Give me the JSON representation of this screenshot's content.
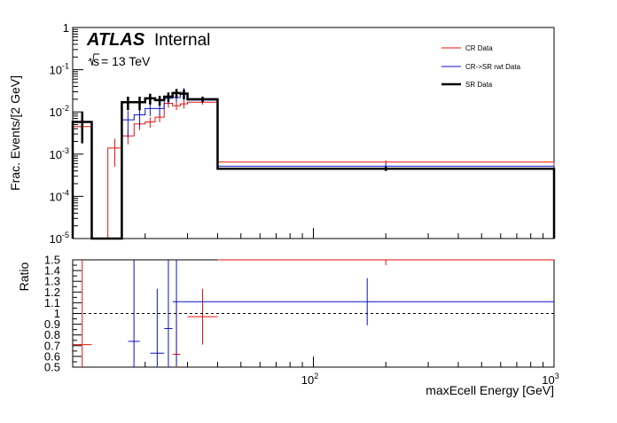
{
  "header": {
    "experiment": "ATLAS",
    "status": "Internal",
    "energy_prefix": "s",
    "energy_suffix": " = 13 TeV"
  },
  "chart_data": [
    {
      "type": "line",
      "panel": "main",
      "ylabel": "Frac. Events/[2 GeV]",
      "xlabel": "",
      "xscale": "log",
      "yscale": "log",
      "xlim": [
        10,
        1000
      ],
      "ylim": [
        1e-05,
        1
      ],
      "legend_position": "top-right",
      "y_ticks": [
        {
          "value": 1e-05,
          "base": "10",
          "exp": "-5"
        },
        {
          "value": 0.0001,
          "base": "10",
          "exp": "-4"
        },
        {
          "value": 0.001,
          "base": "10",
          "exp": "-3"
        },
        {
          "value": 0.01,
          "base": "10",
          "exp": "-2"
        },
        {
          "value": 0.1,
          "base": "10",
          "exp": "-1"
        },
        {
          "value": 1,
          "base": "1",
          "exp": ""
        }
      ],
      "series": [
        {
          "name": "CR Data",
          "color": "#e8120c",
          "bins": [
            {
              "x0": 10,
              "x1": 12,
              "y": 0.0045,
              "err": 0.0018
            },
            {
              "x0": 12,
              "x1": 14,
              "y": 1e-05,
              "err": 0
            },
            {
              "x0": 14,
              "x1": 16,
              "y": 0.0014,
              "err": 0.0009
            },
            {
              "x0": 16,
              "x1": 18,
              "y": 0.0027,
              "err": 0.001
            },
            {
              "x0": 18,
              "x1": 20,
              "y": 0.0052,
              "err": 0.0015
            },
            {
              "x0": 20,
              "x1": 22,
              "y": 0.0058,
              "err": 0.0016
            },
            {
              "x0": 22,
              "x1": 24,
              "y": 0.0075,
              "err": 0.0018
            },
            {
              "x0": 24,
              "x1": 26,
              "y": 0.016,
              "err": 0.0035
            },
            {
              "x0": 26,
              "x1": 28,
              "y": 0.014,
              "err": 0.003
            },
            {
              "x0": 28,
              "x1": 30,
              "y": 0.0155,
              "err": 0.0035
            },
            {
              "x0": 30,
              "x1": 40,
              "y": 0.017,
              "err": 0.0022
            },
            {
              "x0": 40,
              "x1": 1000,
              "y": 0.00065,
              "err": 6e-05
            }
          ]
        },
        {
          "name": "CR->SR rwt Data",
          "color": "#0c12c8",
          "bins": [
            {
              "x0": 10,
              "x1": 12,
              "y": 0.0058,
              "err": 0.002
            },
            {
              "x0": 12,
              "x1": 14,
              "y": 1e-05,
              "err": 0
            },
            {
              "x0": 14,
              "x1": 16,
              "y": 1e-05,
              "err": 0
            },
            {
              "x0": 16,
              "x1": 18,
              "y": 0.0065,
              "err": 0.004
            },
            {
              "x0": 18,
              "x1": 20,
              "y": 0.0085,
              "err": 0.004
            },
            {
              "x0": 20,
              "x1": 22,
              "y": 0.012,
              "err": 0.004
            },
            {
              "x0": 22,
              "x1": 24,
              "y": 0.012,
              "err": 0.004
            },
            {
              "x0": 24,
              "x1": 26,
              "y": 0.021,
              "err": 0.006
            },
            {
              "x0": 26,
              "x1": 28,
              "y": 0.022,
              "err": 0.005
            },
            {
              "x0": 28,
              "x1": 30,
              "y": 0.028,
              "err": 0.009
            },
            {
              "x0": 30,
              "x1": 40,
              "y": 0.019,
              "err": 0.003
            },
            {
              "x0": 40,
              "x1": 1000,
              "y": 0.00052,
              "err": 8e-05
            }
          ]
        },
        {
          "name": "SR Data",
          "color": "#000000",
          "bins": [
            {
              "x0": 10,
              "x1": 12,
              "y": 0.0058,
              "err": 0.004
            },
            {
              "x0": 12,
              "x1": 14,
              "y": 1e-05,
              "err": 0
            },
            {
              "x0": 14,
              "x1": 16,
              "y": 1e-05,
              "err": 0
            },
            {
              "x0": 16,
              "x1": 18,
              "y": 0.017,
              "err": 0.006
            },
            {
              "x0": 18,
              "x1": 20,
              "y": 0.017,
              "err": 0.006
            },
            {
              "x0": 20,
              "x1": 22,
              "y": 0.021,
              "err": 0.006
            },
            {
              "x0": 22,
              "x1": 24,
              "y": 0.019,
              "err": 0.005
            },
            {
              "x0": 24,
              "x1": 26,
              "y": 0.023,
              "err": 0.006
            },
            {
              "x0": 26,
              "x1": 28,
              "y": 0.028,
              "err": 0.007
            },
            {
              "x0": 28,
              "x1": 30,
              "y": 0.027,
              "err": 0.007
            },
            {
              "x0": 30,
              "x1": 40,
              "y": 0.02,
              "err": 0.003
            },
            {
              "x0": 40,
              "x1": 1000,
              "y": 0.00045,
              "err": 5e-05
            }
          ]
        }
      ]
    },
    {
      "type": "scatter",
      "panel": "ratio",
      "ylabel": "Ratio",
      "xlabel": "maxEcell Energy [GeV]",
      "xscale": "log",
      "xlim": [
        10,
        1000
      ],
      "ylim": [
        0.5,
        1.5
      ],
      "y_ticks": [
        "0.5",
        "0.6",
        "0.7",
        "0.8",
        "0.9",
        "1",
        "1.1",
        "1.2",
        "1.3",
        "1.4",
        "1.5"
      ],
      "x_ticks": [
        {
          "value": 100,
          "base": "10",
          "exp": "2"
        },
        {
          "value": 1000,
          "base": "10",
          "exp": "3"
        }
      ],
      "reference_line": 1,
      "series": [
        {
          "name": "CR Data",
          "color": "#e8120c",
          "points": [
            {
              "x0": 10,
              "x1": 12,
              "y": 0.71,
              "err": 0.79
            },
            {
              "x0": 26,
              "x1": 28,
              "y": 0.62,
              "err": 0.5
            },
            {
              "x0": 30,
              "x1": 40,
              "y": 0.97,
              "err": 0.26
            },
            {
              "x0": 40,
              "x1": 1000,
              "y": 1.5,
              "err": 0.05
            }
          ]
        },
        {
          "name": "CR->SR rwt Data",
          "color": "#0c12c8",
          "points": [
            {
              "x0": 17,
              "x1": 19,
              "y": 0.74,
              "err": 0.8
            },
            {
              "x0": 21,
              "x1": 24,
              "y": 0.63,
              "err": 0.6
            },
            {
              "x0": 24,
              "x1": 26,
              "y": 0.86,
              "err": 0.8
            },
            {
              "x0": 26,
              "x1": 28,
              "y": 1.11,
              "err": 0.6
            },
            {
              "x0": 28,
              "x1": 1000,
              "y": 1.11,
              "err": 0.22
            }
          ]
        }
      ]
    }
  ]
}
